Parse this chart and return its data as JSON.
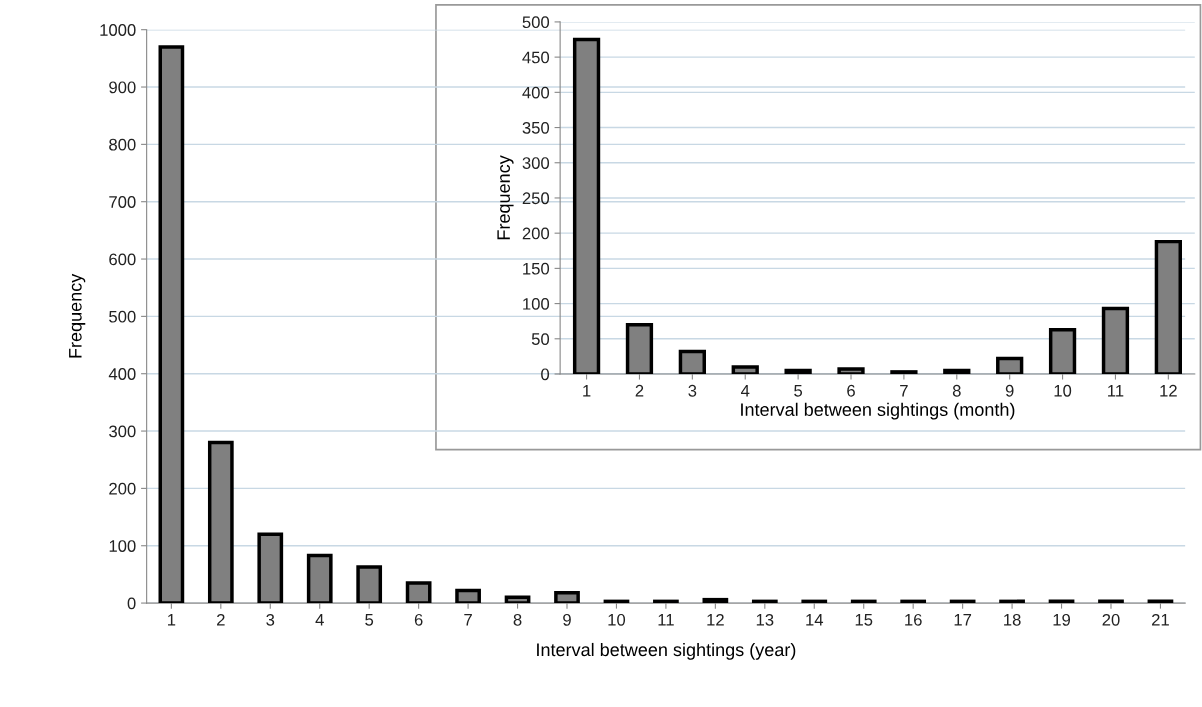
{
  "chart_data": [
    {
      "type": "bar",
      "xlabel": "Interval between sightings (year)",
      "ylabel": "Frequency",
      "categories": [
        "1",
        "2",
        "3",
        "4",
        "5",
        "6",
        "7",
        "8",
        "9",
        "10",
        "11",
        "12",
        "13",
        "14",
        "15",
        "16",
        "17",
        "18",
        "19",
        "20",
        "21"
      ],
      "values": [
        970,
        280,
        120,
        83,
        63,
        35,
        22,
        10,
        18,
        3,
        3,
        6,
        3,
        3,
        3,
        3,
        3,
        3,
        3,
        3,
        3
      ],
      "color": "#808080",
      "ylim": [
        0,
        1000
      ],
      "yticks": [
        0,
        100,
        200,
        300,
        400,
        500,
        600,
        700,
        800,
        900,
        1000
      ],
      "grid": "y",
      "legend": false
    },
    {
      "type": "bar",
      "xlabel": "Interval between sightings (month)",
      "ylabel": "Frequency",
      "categories": [
        "1",
        "2",
        "3",
        "4",
        "5",
        "6",
        "7",
        "8",
        "9",
        "10",
        "11",
        "12"
      ],
      "values": [
        475,
        70,
        32,
        10,
        5,
        7,
        3,
        5,
        22,
        63,
        93,
        188
      ],
      "color": "#808080",
      "ylim": [
        0,
        500
      ],
      "yticks": [
        0,
        50,
        100,
        150,
        200,
        250,
        300,
        350,
        400,
        450,
        500
      ],
      "grid": "y",
      "legend": false
    }
  ]
}
